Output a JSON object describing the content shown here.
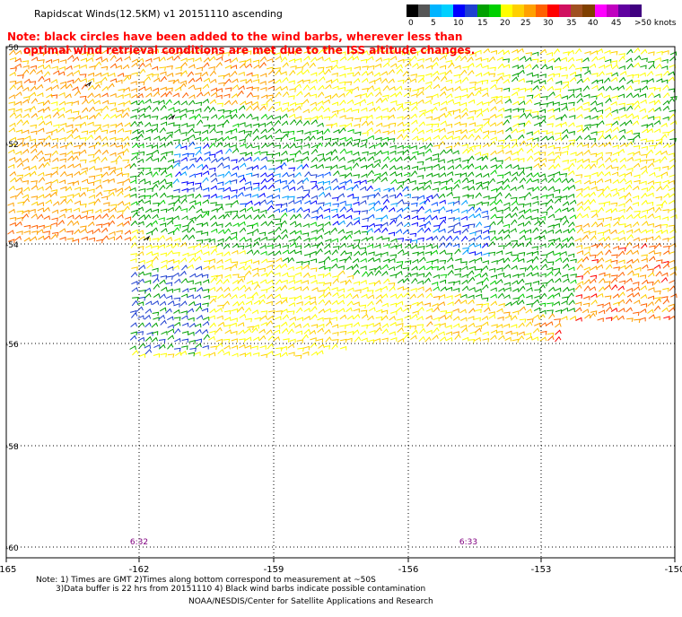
{
  "header": {
    "title": "Rapidscat Winds(12.5KM) v1 20151110 ascending",
    "note_line1": "Note: black circles have been added to the wind barbs, wherever less than",
    "note_line2": "optimal wind retrieval conditions are met due to the ISS altitude changes."
  },
  "legend": {
    "labels": [
      "0",
      "5",
      "10",
      "15",
      "20",
      "25",
      "30",
      "35",
      "40",
      "45",
      ">50 knots"
    ],
    "colors": [
      "#000000",
      "#555555",
      "#00b4ff",
      "#00d0ff",
      "#0000ff",
      "#1f40d0",
      "#00a000",
      "#00d000",
      "#ffff00",
      "#ffd000",
      "#ffa000",
      "#ff6000",
      "#ff0000",
      "#d01060",
      "#a05020",
      "#804000",
      "#ff00ff",
      "#c000c0",
      "#6000a0",
      "#400080"
    ]
  },
  "map": {
    "lat_labels": [
      "-50",
      "-52",
      "-54",
      "-56",
      "-58",
      "-60"
    ],
    "lon_labels": [
      "-165",
      "-162",
      "-159",
      "-156",
      "-153",
      "-150"
    ],
    "time_labels": [
      "6:32",
      "6:33"
    ]
  },
  "footer": {
    "line1": "Note: 1) Times are GMT 2)Times along bottom correspond to measurement at ~50S",
    "line2": "3)Data buffer is 22 hrs from 20151110 4) Black wind barbs indicate possible contamination",
    "line3": "NOAA/NESDIS/Center for Satellite Applications and Research"
  }
}
